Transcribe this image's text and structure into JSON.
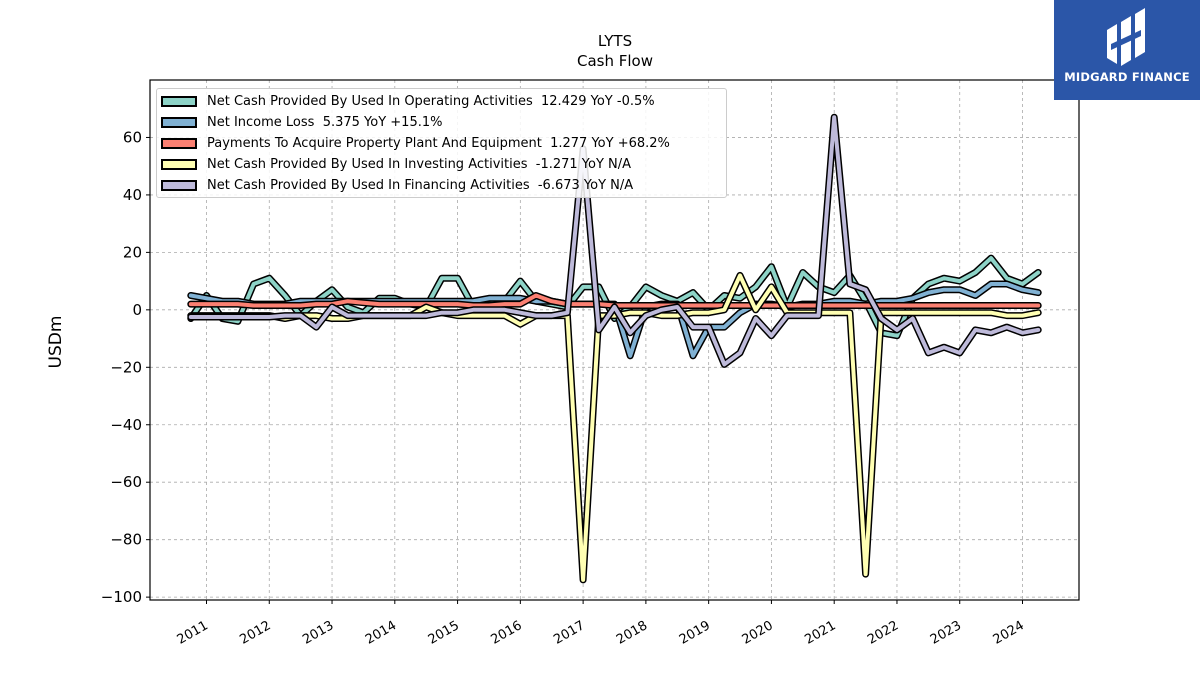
{
  "brand": {
    "name": "MIDGARD FINANCE",
    "color": "#2b56a8"
  },
  "chart_data": {
    "type": "line",
    "title": "LYTS",
    "subtitle": "Cash Flow",
    "xlabel": "",
    "ylabel": "USDm",
    "ylim": [
      -101,
      80
    ],
    "xlim": [
      2010.1,
      2024.9
    ],
    "yticks": [
      60,
      40,
      20,
      0,
      -20,
      -40,
      -60,
      -80,
      -100
    ],
    "ytick_labels": [
      "60",
      "40",
      "20",
      "0",
      "−20",
      "−40",
      "−60",
      "−80",
      "−100"
    ],
    "xticks": [
      2011,
      2012,
      2013,
      2014,
      2015,
      2016,
      2017,
      2018,
      2019,
      2020,
      2021,
      2022,
      2023,
      2024
    ],
    "xtick_labels": [
      "2011",
      "2012",
      "2013",
      "2014",
      "2015",
      "2016",
      "2017",
      "2018",
      "2019",
      "2020",
      "2021",
      "2022",
      "2023",
      "2024"
    ],
    "grid": true,
    "legend_position": "top-left",
    "x": [
      2010.75,
      2011.0,
      2011.25,
      2011.5,
      2011.75,
      2012.0,
      2012.25,
      2012.5,
      2012.75,
      2013.0,
      2013.25,
      2013.5,
      2013.75,
      2014.0,
      2014.25,
      2014.5,
      2014.75,
      2015.0,
      2015.25,
      2015.5,
      2015.75,
      2016.0,
      2016.25,
      2016.5,
      2016.75,
      2017.0,
      2017.25,
      2017.5,
      2017.75,
      2018.0,
      2018.25,
      2018.5,
      2018.75,
      2019.0,
      2019.25,
      2019.5,
      2019.75,
      2020.0,
      2020.25,
      2020.5,
      2020.75,
      2021.0,
      2021.25,
      2021.5,
      2021.75,
      2022.0,
      2022.25,
      2022.5,
      2022.75,
      2023.0,
      2023.25,
      2023.5,
      2023.75,
      2024.0,
      2024.25
    ],
    "series": [
      {
        "name": "Net Cash Provided By Used In Operating Activities",
        "legend": "Net Cash Provided By Used In Operating Activities  12.429 YoY -0.5%",
        "color": "#8dd3c7",
        "values": [
          -3,
          5,
          -3,
          -4,
          9,
          11,
          5,
          -2,
          3,
          7,
          1,
          -1,
          4,
          4,
          2,
          1,
          11,
          11,
          1,
          2,
          3,
          10,
          3,
          2,
          1,
          8,
          8,
          -3,
          1,
          8,
          5,
          3,
          6,
          0,
          5,
          4,
          8,
          15,
          1,
          13,
          8,
          6,
          12,
          3,
          -8,
          -9,
          4,
          9,
          11,
          10,
          13,
          18,
          11,
          9,
          13
        ]
      },
      {
        "name": "Net Income Loss",
        "legend": "Net Income Loss  5.375 YoY +15.1%",
        "color": "#80b1d3",
        "values": [
          5,
          4,
          3,
          3,
          2,
          2,
          2,
          3,
          3,
          3,
          3,
          3,
          3,
          3,
          3,
          3,
          3,
          3,
          3,
          4,
          4,
          4,
          3,
          3,
          2,
          2,
          2,
          2,
          -16,
          1,
          2,
          2,
          -16,
          -6,
          -6,
          -1,
          2,
          2,
          1,
          2,
          2,
          3,
          3,
          2,
          3,
          3,
          4,
          6,
          7,
          7,
          5,
          9,
          9,
          7,
          6
        ]
      },
      {
        "name": "Payments To Acquire Property Plant And Equipment",
        "legend": "Payments To Acquire Property Plant And Equipment  1.277 YoY +68.2%",
        "color": "#fb8072",
        "values": [
          2,
          2,
          2,
          2,
          1.5,
          1.5,
          1.5,
          1.5,
          2,
          2,
          3,
          2.5,
          2,
          2,
          2,
          2,
          2,
          2,
          1.5,
          1.5,
          2,
          2,
          5,
          3,
          2,
          2,
          2,
          1.5,
          1.5,
          1.5,
          1.5,
          1.5,
          1.5,
          1.5,
          1.5,
          1.5,
          1.5,
          1.5,
          1.5,
          1.5,
          1.5,
          1.5,
          1.5,
          1.5,
          1.5,
          1.5,
          1.5,
          1.5,
          1.5,
          1.5,
          1.5,
          1.5,
          1.5,
          1.5,
          1.5
        ]
      },
      {
        "name": "Net Cash Provided By Used In Investing Activities",
        "legend": "Net Cash Provided By Used In Investing Activities  -1.271 YoY N/A",
        "color": "#ffffb3",
        "values": [
          -2,
          -2,
          -2,
          -2,
          -2,
          -2,
          -3,
          -2,
          -2,
          -3,
          -3,
          -2,
          -2,
          -2,
          -2,
          1,
          -1,
          -2,
          -2,
          -2,
          -2,
          -5,
          -2,
          -2,
          -2,
          -94,
          -2,
          -2,
          -1,
          -1,
          -2,
          -2,
          -1,
          -1,
          0,
          12,
          0,
          8,
          -1,
          -1,
          -1,
          -1,
          -1,
          -92,
          -1,
          -1,
          -1,
          -1,
          -1,
          -1,
          -1,
          -1,
          -2,
          -2,
          -1
        ]
      },
      {
        "name": "Net Cash Provided By Used In Financing Activities",
        "legend": "Net Cash Provided By Used In Financing Activities  -6.673 YoY N/A",
        "color": "#bebada",
        "values": [
          -2.5,
          -2.5,
          -2.5,
          -2.5,
          -2.5,
          -2.5,
          -2,
          -2,
          -6,
          1,
          -2,
          -2,
          -2,
          -2,
          -2,
          -2,
          -1,
          -1,
          0,
          0,
          0,
          -1,
          -2,
          -2,
          -1,
          56,
          -7,
          1,
          -8,
          -2,
          0,
          1,
          -6,
          -6,
          -19,
          -15,
          -3,
          -9,
          -2,
          -2,
          -2,
          67,
          9,
          7,
          -3,
          -7,
          -3,
          -15,
          -13,
          -15,
          -7,
          -8,
          -6,
          -8,
          -7
        ]
      }
    ]
  }
}
